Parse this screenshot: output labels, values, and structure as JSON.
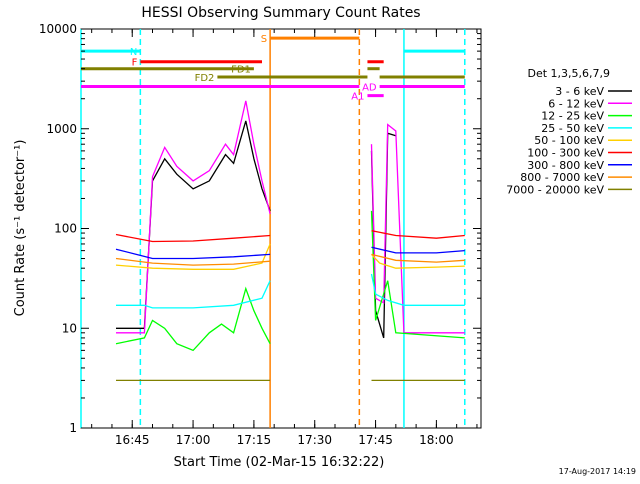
{
  "chart_data": {
    "type": "line",
    "title": "HESSI Observing Summary Count Rates",
    "xlabel": "Start Time (02-Mar-15 16:32:22)",
    "ylabel": "Count Rate (s⁻¹ detector⁻¹)",
    "yscale": "log",
    "ylim": [
      1,
      10000
    ],
    "xlim": [
      "16:32:22",
      "18:11:00"
    ],
    "x_tick_labels": [
      "16:45",
      "17:00",
      "17:15",
      "17:30",
      "17:45",
      "18:00"
    ],
    "y_tick_labels": [
      "1",
      "10",
      "100",
      "1000",
      "10000"
    ],
    "footer": "17-Aug-2017 14:19",
    "legend_position": "right",
    "legend_title": "Det 1,3,5,6,7,9",
    "series": [
      {
        "name": "3 - 6 keV",
        "color": "#000000",
        "points": [
          [
            "16:41",
            10
          ],
          [
            "16:48",
            10
          ],
          [
            "16:50",
            300
          ],
          [
            "16:53",
            500
          ],
          [
            "16:56",
            350
          ],
          [
            "17:00",
            250
          ],
          [
            "17:04",
            300
          ],
          [
            "17:08",
            550
          ],
          [
            "17:10",
            450
          ],
          [
            "17:13",
            1200
          ],
          [
            "17:15",
            500
          ],
          [
            "17:17",
            250
          ],
          [
            "17:19",
            150
          ],
          [
            "17:43",
            null
          ],
          [
            "17:44",
            600
          ],
          [
            "17:45",
            15
          ],
          [
            "17:47",
            8
          ],
          [
            "17:48",
            900
          ],
          [
            "17:50",
            850
          ]
        ]
      },
      {
        "name": "6 - 12 keV",
        "color": "#ff00ff",
        "points": [
          [
            "16:41",
            9
          ],
          [
            "16:48",
            9
          ],
          [
            "16:50",
            330
          ],
          [
            "16:53",
            650
          ],
          [
            "16:56",
            420
          ],
          [
            "17:00",
            300
          ],
          [
            "17:04",
            380
          ],
          [
            "17:08",
            700
          ],
          [
            "17:10",
            550
          ],
          [
            "17:13",
            1900
          ],
          [
            "17:15",
            700
          ],
          [
            "17:17",
            300
          ],
          [
            "17:19",
            140
          ],
          [
            "17:43",
            null
          ],
          [
            "17:44",
            700
          ],
          [
            "17:45",
            20
          ],
          [
            "17:47",
            18
          ],
          [
            "17:48",
            1100
          ],
          [
            "17:50",
            950
          ],
          [
            "17:52",
            9
          ],
          [
            "18:07",
            9
          ]
        ]
      },
      {
        "name": "12 - 25 keV",
        "color": "#00ff00",
        "points": [
          [
            "16:41",
            7
          ],
          [
            "16:48",
            8
          ],
          [
            "16:50",
            12
          ],
          [
            "16:53",
            10
          ],
          [
            "16:56",
            7
          ],
          [
            "17:00",
            6
          ],
          [
            "17:04",
            9
          ],
          [
            "17:07",
            11
          ],
          [
            "17:10",
            9
          ],
          [
            "17:13",
            25
          ],
          [
            "17:15",
            15
          ],
          [
            "17:17",
            10
          ],
          [
            "17:19",
            7
          ],
          [
            "17:43",
            null
          ],
          [
            "17:44",
            150
          ],
          [
            "17:45",
            12
          ],
          [
            "17:48",
            30
          ],
          [
            "17:50",
            9
          ],
          [
            "18:07",
            8
          ]
        ]
      },
      {
        "name": "25 - 50 keV",
        "color": "#00ffff",
        "points": [
          [
            "16:41",
            17
          ],
          [
            "16:48",
            17
          ],
          [
            "16:50",
            16
          ],
          [
            "17:00",
            16
          ],
          [
            "17:10",
            17
          ],
          [
            "17:17",
            20
          ],
          [
            "17:19",
            30
          ],
          [
            "17:43",
            null
          ],
          [
            "17:44",
            35
          ],
          [
            "17:45",
            22
          ],
          [
            "17:48",
            19
          ],
          [
            "17:52",
            17
          ],
          [
            "18:07",
            17
          ]
        ]
      },
      {
        "name": "50 - 100 keV",
        "color": "#ffd000",
        "points": [
          [
            "16:41",
            43
          ],
          [
            "16:50",
            40
          ],
          [
            "17:00",
            39
          ],
          [
            "17:10",
            39
          ],
          [
            "17:17",
            45
          ],
          [
            "17:19",
            70
          ],
          [
            "17:43",
            null
          ],
          [
            "17:44",
            55
          ],
          [
            "17:46",
            45
          ],
          [
            "17:50",
            40
          ],
          [
            "18:00",
            41
          ],
          [
            "18:07",
            42
          ]
        ]
      },
      {
        "name": "100 - 300 keV",
        "color": "#ff0000",
        "points": [
          [
            "16:41",
            87
          ],
          [
            "16:50",
            74
          ],
          [
            "17:00",
            75
          ],
          [
            "17:10",
            80
          ],
          [
            "17:19",
            85
          ],
          [
            "17:43",
            null
          ],
          [
            "17:44",
            95
          ],
          [
            "17:50",
            85
          ],
          [
            "18:00",
            80
          ],
          [
            "18:07",
            85
          ]
        ]
      },
      {
        "name": "300 - 800 keV",
        "color": "#0000ff",
        "points": [
          [
            "16:41",
            62
          ],
          [
            "16:50",
            50
          ],
          [
            "17:00",
            50
          ],
          [
            "17:10",
            52
          ],
          [
            "17:19",
            55
          ],
          [
            "17:43",
            null
          ],
          [
            "17:44",
            65
          ],
          [
            "17:50",
            57
          ],
          [
            "18:00",
            57
          ],
          [
            "18:07",
            60
          ]
        ]
      },
      {
        "name": "800 - 7000 keV",
        "color": "#ff8c00",
        "points": [
          [
            "16:41",
            50
          ],
          [
            "16:50",
            45
          ],
          [
            "17:00",
            43
          ],
          [
            "17:10",
            44
          ],
          [
            "17:19",
            47
          ],
          [
            "17:43",
            null
          ],
          [
            "17:44",
            55
          ],
          [
            "17:50",
            48
          ],
          [
            "18:00",
            46
          ],
          [
            "18:07",
            48
          ]
        ]
      },
      {
        "name": "7000 - 20000 keV",
        "color": "#808000",
        "points": [
          [
            "16:41",
            3
          ],
          [
            "16:50",
            3
          ],
          [
            "17:00",
            3
          ],
          [
            "17:10",
            3
          ],
          [
            "17:19",
            3
          ],
          [
            "17:43",
            null
          ],
          [
            "17:44",
            3
          ],
          [
            "17:50",
            3
          ],
          [
            "18:00",
            3
          ],
          [
            "18:07",
            3
          ]
        ]
      }
    ],
    "flags": [
      {
        "label": "N",
        "color": "#00ffff",
        "segments": [
          [
            "16:32:22",
            "16:47"
          ],
          [
            "17:52",
            "18:07"
          ]
        ],
        "label_at": "16:47",
        "level": 6000
      },
      {
        "label": "F",
        "color": "#ff0000",
        "segments": [
          [
            "16:47",
            "17:17"
          ],
          [
            "17:43",
            "17:47"
          ]
        ],
        "label_at": "16:47",
        "level": 4700
      },
      {
        "label": "S",
        "color": "#ff8000",
        "segments": [
          [
            "17:19",
            "17:41"
          ]
        ],
        "label_at": "17:19",
        "level": 8100
      },
      {
        "label": "FD1",
        "color": "#808000",
        "segments": [
          [
            "16:32:22",
            "17:15"
          ],
          [
            "17:43",
            "17:46"
          ]
        ],
        "label_at": "17:15",
        "level": 4000
      },
      {
        "label": "FD2",
        "color": "#808000",
        "segments": [
          [
            "17:06",
            "17:43"
          ],
          [
            "17:46",
            "18:07"
          ]
        ],
        "label_at": "17:06",
        "level": 3300
      },
      {
        "label": "AD",
        "color": "#ff00ff",
        "segments": [
          [
            "16:32:22",
            "17:41"
          ],
          [
            "17:46",
            "18:07"
          ]
        ],
        "label_at": "17:46",
        "level": 2650
      },
      {
        "label": "A1",
        "color": "#ff00ff",
        "segments": [
          [
            "17:43",
            "17:47"
          ]
        ],
        "label_at": "17:43",
        "level": 2150
      }
    ],
    "vertical_markers": [
      {
        "time": "16:32:22",
        "color": "#00ffff",
        "style": "solid"
      },
      {
        "time": "16:47",
        "color": "#00ffff",
        "style": "dashed"
      },
      {
        "time": "17:19",
        "color": "#ff8000",
        "style": "solid"
      },
      {
        "time": "17:41",
        "color": "#ff8000",
        "style": "dashed"
      },
      {
        "time": "17:52",
        "color": "#00ffff",
        "style": "solid"
      },
      {
        "time": "18:07",
        "color": "#00ffff",
        "style": "dashed"
      }
    ]
  }
}
